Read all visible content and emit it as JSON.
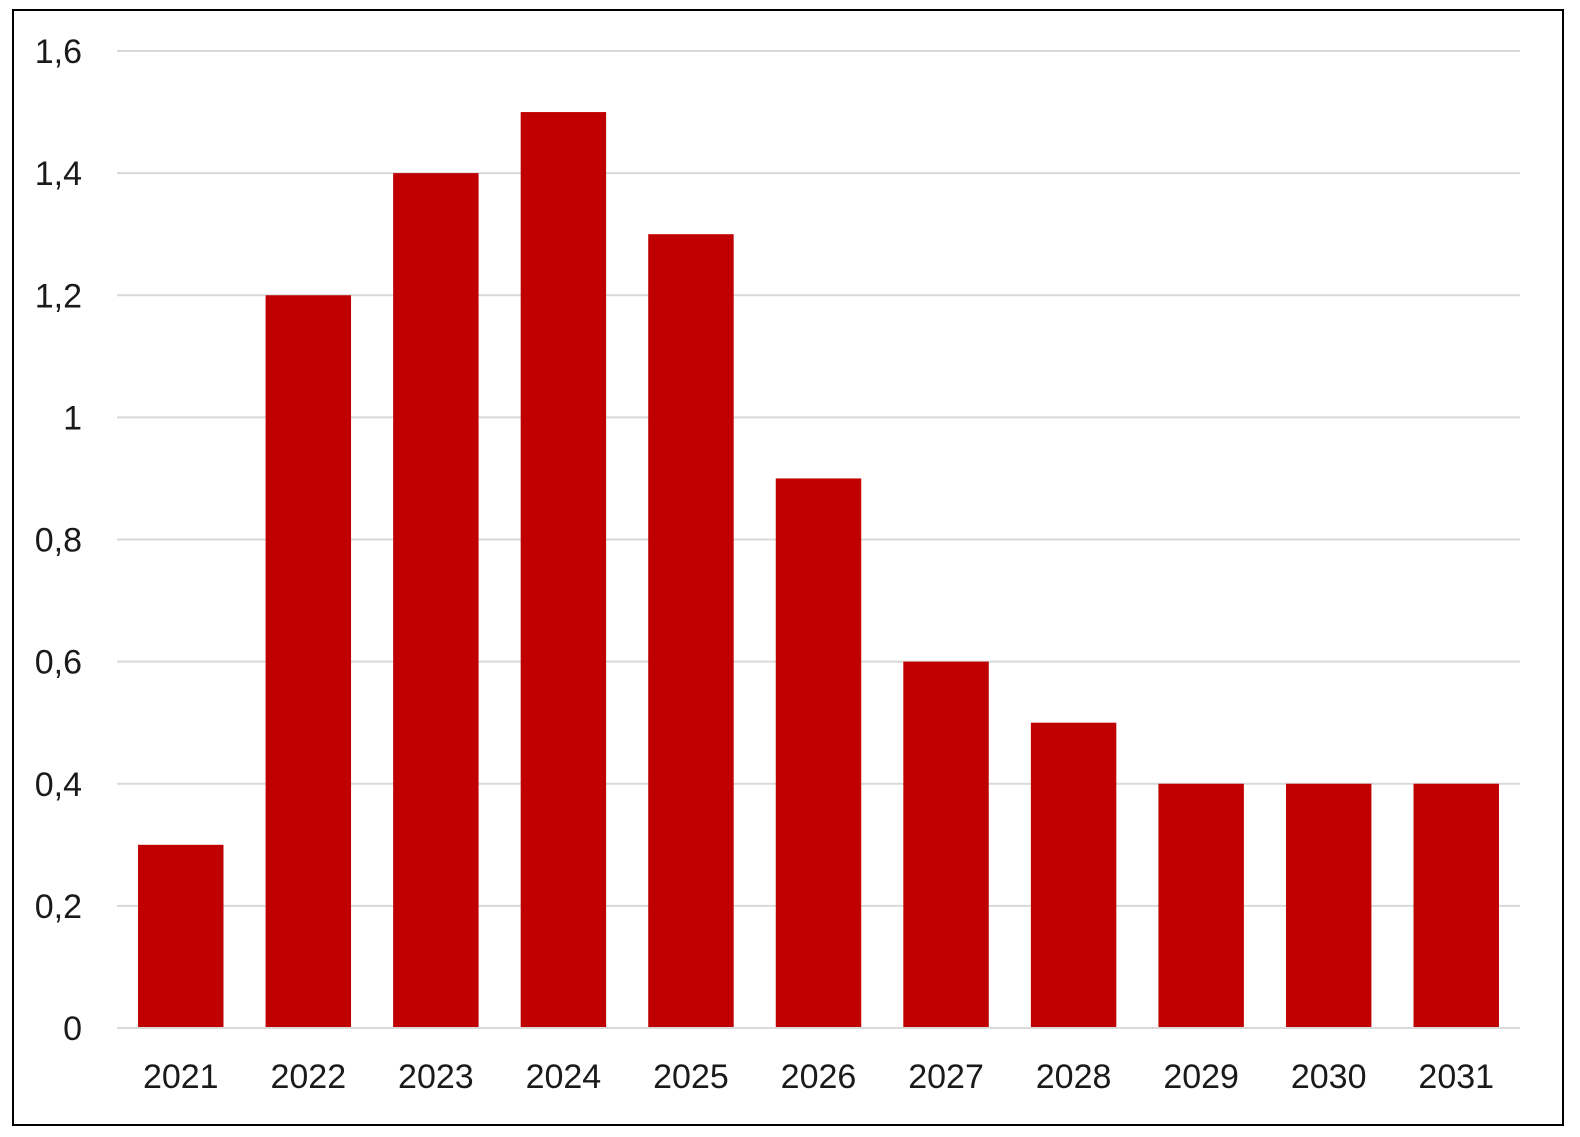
{
  "chart_data": {
    "type": "bar",
    "title": "",
    "xlabel": "",
    "ylabel": "",
    "categories": [
      "2021",
      "2022",
      "2023",
      "2024",
      "2025",
      "2026",
      "2027",
      "2028",
      "2029",
      "2030",
      "2031"
    ],
    "values": [
      0.3,
      1.2,
      1.4,
      1.5,
      1.3,
      0.9,
      0.6,
      0.5,
      0.4,
      0.4,
      0.4
    ],
    "ylim": [
      0,
      1.6
    ],
    "y_ticks": [
      0,
      0.2,
      0.4,
      0.6,
      0.8,
      1,
      1.2,
      1.4,
      1.6
    ],
    "y_tick_labels": [
      "0",
      "0,2",
      "0,4",
      "0,6",
      "0,8",
      "1",
      "1,2",
      "1,4",
      "1,6"
    ],
    "grid": true,
    "legend": "none",
    "bar_color": "#c00000",
    "grid_color": "#d9d9d9"
  }
}
